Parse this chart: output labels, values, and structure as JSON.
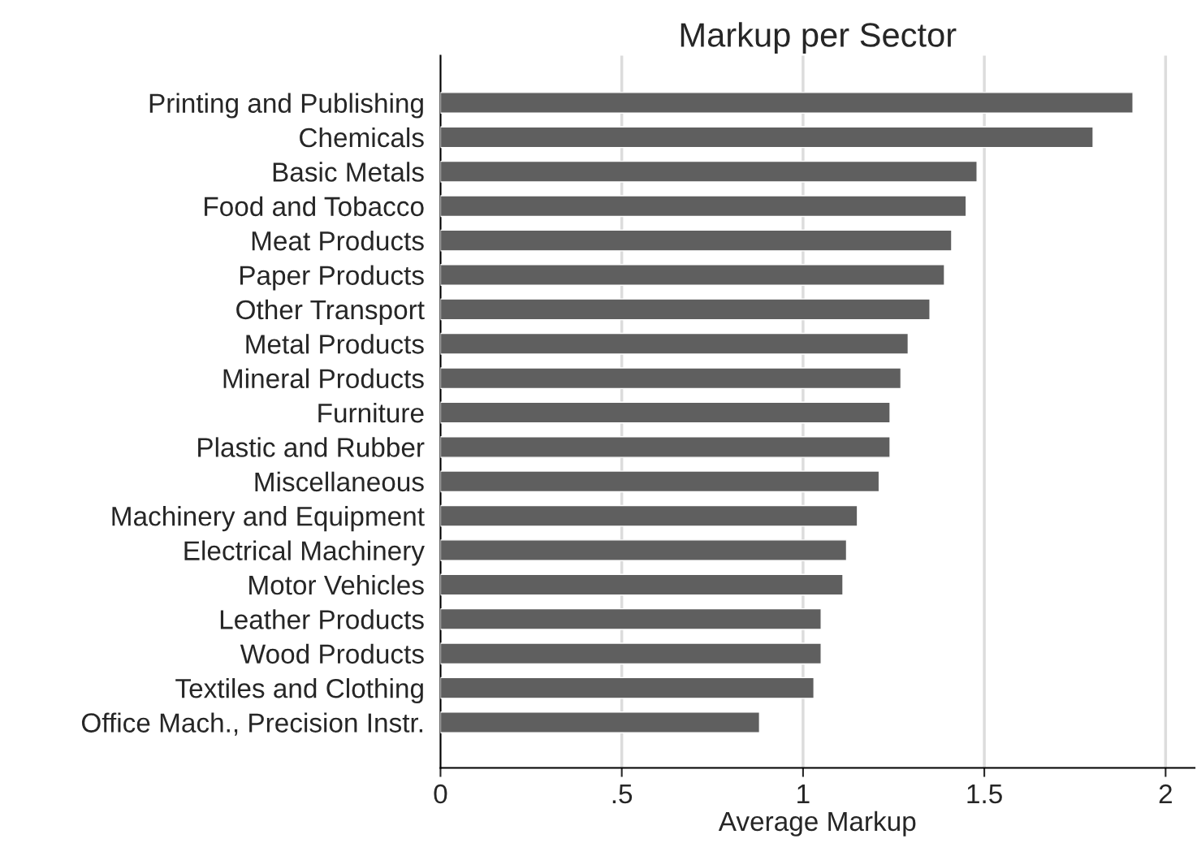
{
  "chart_data": {
    "type": "bar",
    "orientation": "horizontal",
    "title": "Markup per Sector",
    "xlabel": "Average Markup",
    "categories": [
      "Printing and Publishing",
      "Chemicals",
      "Basic Metals",
      "Food and Tobacco",
      "Meat Products",
      "Paper Products",
      "Other Transport",
      "Metal Products",
      "Mineral Products",
      "Furniture",
      "Plastic and Rubber",
      "Miscellaneous",
      "Machinery and Equipment",
      "Electrical Machinery",
      "Motor Vehicles",
      "Leather Products",
      "Wood Products",
      "Textiles and Clothing",
      "Office Mach., Precision Instr."
    ],
    "values": [
      1.91,
      1.8,
      1.48,
      1.45,
      1.41,
      1.39,
      1.35,
      1.29,
      1.27,
      1.24,
      1.24,
      1.21,
      1.15,
      1.12,
      1.11,
      1.05,
      1.05,
      1.03,
      0.88
    ],
    "color": "#5f5f5f",
    "xlim": [
      0,
      2.08
    ],
    "xticks": [
      0,
      {
        "value": 0.5,
        "label": ".5"
      },
      1,
      {
        "value": 1.5,
        "label": "1.5"
      },
      2
    ],
    "grid": "x",
    "legend": false
  }
}
